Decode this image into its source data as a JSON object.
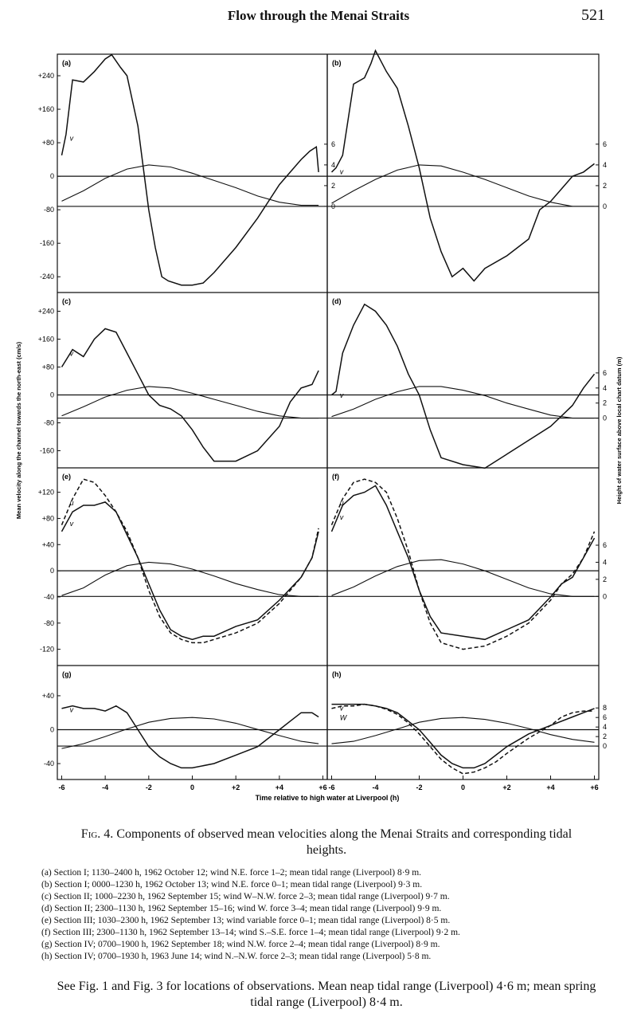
{
  "header": {
    "title": "Flow through the Menai Straits",
    "page_number": "521"
  },
  "y_axis_left_label": "Mean velocity along the channel towards the north-east (cm/s)",
  "y_axis_right_label": "Height of water surface above local chart datum (m)",
  "x_axis_label": "Time relative to high water at Liverpool (h)",
  "caption": {
    "fig_label": "Fig. 4.",
    "text": "Components of observed mean velocities along the Menai Straits and corresponding tidal heights."
  },
  "legend": [
    "(a) Section I; 1130–2400 h, 1962 October 12; wind N.E. force 1–2; mean tidal range (Liverpool) 8·9 m.",
    "(b) Section I; 0000–1230 h, 1962 October 13; wind N.E. force 0–1; mean tidal range (Liverpool) 9·3 m.",
    "(c) Section II; 1000–2230 h, 1962 September 15; wind W–N.W. force 2–3; mean tidal range (Liverpool) 9·7 m.",
    "(d) Section II; 2300–1130 h, 1962 September 15–16; wind W. force 3–4; mean tidal range (Liverpool) 9·9 m.",
    "(e) Section III; 1030–2300 h, 1962 September 13; wind variable force 0–1; mean tidal range (Liverpool) 8·5 m.",
    "(f) Section III; 2300–1130 h, 1962 September 13–14; wind S.–S.E. force 1–4; mean tidal range (Liverpool) 9·2 m.",
    "(g) Section IV; 0700–1900 h, 1962 September 18; wind N.W. force 2–4; mean tidal range (Liverpool) 8·9 m.",
    "(h) Section IV; 0700–1930 h, 1963 June 14; wind N.–N.W. force 2–3; mean tidal range (Liverpool) 5·8 m."
  ],
  "note": "See Fig. 1 and Fig. 3 for locations of observations. Mean neap tidal range (Liverpool) 4·6 m; mean spring tidal range (Liverpool) 8·4 m.",
  "chart_data": [
    {
      "panel": "(a)",
      "type": "line",
      "yticks": [
        "+240",
        "+160",
        "+80",
        "0",
        "-80",
        "-160",
        "-240"
      ],
      "ytick_values": [
        240,
        160,
        80,
        0,
        -80,
        -160,
        -240
      ],
      "ylim": [
        -270,
        280
      ],
      "height_ticks": [
        "6",
        "4",
        "2",
        "0"
      ],
      "height_tick_values": [
        6,
        4,
        2,
        0
      ],
      "curve_labels": [
        "v"
      ],
      "series": [
        {
          "name": "v",
          "style": "solid",
          "x": [
            -6,
            -5.8,
            -5.5,
            -5,
            -4.5,
            -4,
            -3.7,
            -3.3,
            -3,
            -2.5,
            -2,
            -1.7,
            -1.4,
            -1.1,
            -0.5,
            0,
            0.5,
            1,
            1.5,
            2,
            3,
            4,
            5,
            5.4,
            5.7,
            5.8
          ],
          "y": [
            50,
            100,
            230,
            225,
            250,
            280,
            290,
            260,
            240,
            120,
            -80,
            -170,
            -240,
            -250,
            -260,
            -260,
            -255,
            -230,
            -200,
            -170,
            -100,
            -20,
            40,
            60,
            70,
            10
          ]
        },
        {
          "name": "height",
          "style": "solid",
          "x": [
            -6,
            -5,
            -4,
            -3,
            -2,
            -1,
            0,
            1,
            2,
            3,
            4,
            5,
            5.8
          ],
          "y": [
            0.5,
            1.5,
            2.7,
            3.6,
            4.0,
            3.8,
            3.2,
            2.5,
            1.8,
            1.0,
            0.4,
            0.1,
            0.1
          ]
        }
      ]
    },
    {
      "panel": "(b)",
      "type": "line",
      "yticks": [],
      "ytick_values": [],
      "ylim": [
        -270,
        280
      ],
      "height_ticks": [
        "6",
        "4",
        "2",
        "0"
      ],
      "height_tick_values": [
        6,
        4,
        2,
        0
      ],
      "curve_labels": [
        "v"
      ],
      "series": [
        {
          "name": "v",
          "style": "solid",
          "x": [
            -6,
            -5.8,
            -5.5,
            -5,
            -4.5,
            -4.2,
            -4,
            -3.5,
            -3,
            -2.5,
            -2,
            -1.5,
            -1,
            -0.5,
            0,
            0.5,
            1,
            2,
            3,
            3.5,
            4,
            4.5,
            5,
            5.5,
            6
          ],
          "y": [
            10,
            20,
            50,
            220,
            235,
            270,
            300,
            250,
            210,
            120,
            20,
            -100,
            -180,
            -240,
            -220,
            -250,
            -220,
            -190,
            -150,
            -80,
            -60,
            -30,
            0,
            10,
            30
          ]
        },
        {
          "name": "height",
          "style": "solid",
          "x": [
            -6,
            -5,
            -4,
            -3,
            -2,
            -1,
            0,
            1,
            2,
            3,
            4,
            5,
            6
          ],
          "y": [
            0.3,
            1.5,
            2.6,
            3.5,
            4.0,
            3.9,
            3.3,
            2.6,
            1.8,
            1.0,
            0.4,
            0.0,
            0.0
          ]
        }
      ]
    },
    {
      "panel": "(c)",
      "type": "line",
      "yticks": [
        "+240",
        "+160",
        "+80",
        "0",
        "-80",
        "-160"
      ],
      "ytick_values": [
        240,
        160,
        80,
        0,
        -80,
        -160
      ],
      "ylim": [
        -200,
        280
      ],
      "height_ticks": [],
      "height_tick_values": [],
      "curve_labels": [
        "v"
      ],
      "series": [
        {
          "name": "v",
          "style": "solid",
          "x": [
            -6,
            -5.5,
            -5,
            -4.5,
            -4,
            -3.5,
            -3,
            -2.5,
            -2,
            -1.5,
            -1,
            -0.5,
            0,
            0.5,
            1,
            2,
            3,
            4,
            4.5,
            5,
            5.5,
            5.8
          ],
          "y": [
            80,
            130,
            110,
            160,
            190,
            180,
            120,
            60,
            0,
            -30,
            -40,
            -60,
            -100,
            -150,
            -190,
            -190,
            -160,
            -90,
            -20,
            20,
            30,
            70
          ]
        },
        {
          "name": "height",
          "style": "solid",
          "x": [
            -6,
            -5,
            -4,
            -3,
            -2,
            -1,
            0,
            1,
            2,
            3,
            4,
            5,
            5.8
          ],
          "y": [
            0.3,
            1.5,
            2.8,
            3.7,
            4.2,
            4.0,
            3.3,
            2.5,
            1.7,
            0.9,
            0.3,
            0.0,
            0.0
          ]
        }
      ]
    },
    {
      "panel": "(d)",
      "type": "line",
      "yticks": [],
      "ytick_values": [],
      "ylim": [
        -200,
        280
      ],
      "height_ticks": [
        "6",
        "4",
        "2",
        "0"
      ],
      "height_tick_values": [
        6,
        4,
        2,
        0
      ],
      "curve_labels": [
        "v"
      ],
      "series": [
        {
          "name": "v",
          "style": "solid",
          "x": [
            -6,
            -5.8,
            -5.5,
            -5,
            -4.5,
            -4,
            -3.5,
            -3,
            -2.5,
            -2,
            -1.5,
            -1,
            0,
            1,
            2,
            3,
            4,
            4.5,
            5,
            5.5,
            6
          ],
          "y": [
            0,
            10,
            120,
            200,
            260,
            240,
            200,
            140,
            60,
            0,
            -100,
            -180,
            -200,
            -210,
            -170,
            -130,
            -90,
            -60,
            -30,
            20,
            60
          ]
        },
        {
          "name": "height",
          "style": "solid",
          "x": [
            -6,
            -5,
            -4,
            -3,
            -2,
            -1,
            0,
            1,
            2,
            3,
            4,
            5,
            6
          ],
          "y": [
            0.2,
            1.2,
            2.5,
            3.5,
            4.2,
            4.2,
            3.7,
            3.0,
            2.0,
            1.2,
            0.4,
            0.0,
            0.0
          ]
        }
      ]
    },
    {
      "panel": "(e)",
      "type": "line",
      "yticks": [
        "+120",
        "+80",
        "+40",
        "0",
        "-40",
        "-80",
        "-120"
      ],
      "ytick_values": [
        120,
        80,
        40,
        0,
        -40,
        -80,
        -120
      ],
      "ylim": [
        -140,
        150
      ],
      "height_ticks": [],
      "height_tick_values": [],
      "curve_labels": [
        "u",
        "v"
      ],
      "series": [
        {
          "name": "v",
          "style": "solid",
          "x": [
            -6,
            -5.5,
            -5,
            -4.5,
            -4,
            -3.5,
            -3,
            -2.5,
            -2,
            -1.5,
            -1,
            -0.5,
            0,
            0.5,
            1,
            2,
            3,
            4,
            5,
            5.5,
            5.8
          ],
          "y": [
            60,
            90,
            100,
            100,
            105,
            90,
            55,
            20,
            -20,
            -60,
            -90,
            -100,
            -105,
            -100,
            -100,
            -85,
            -75,
            -45,
            -10,
            20,
            60
          ]
        },
        {
          "name": "u",
          "style": "dashed",
          "x": [
            -6,
            -5.5,
            -5,
            -4.5,
            -4,
            -3.5,
            -3,
            -2.5,
            -2,
            -1.5,
            -1,
            -0.5,
            0,
            0.5,
            1,
            2,
            3,
            4,
            5,
            5.5,
            5.8
          ],
          "y": [
            70,
            110,
            140,
            135,
            115,
            90,
            60,
            20,
            -30,
            -70,
            -95,
            -105,
            -110,
            -110,
            -105,
            -95,
            -80,
            -50,
            -10,
            20,
            65
          ]
        },
        {
          "name": "height",
          "style": "solid",
          "x": [
            -6,
            -5,
            -4,
            -3,
            -2,
            -1,
            0,
            1,
            2,
            3,
            4,
            5,
            5.8
          ],
          "y": [
            0.1,
            1.0,
            2.5,
            3.6,
            4.0,
            3.8,
            3.2,
            2.4,
            1.5,
            0.8,
            0.2,
            0.0,
            0.0
          ]
        }
      ]
    },
    {
      "panel": "(f)",
      "type": "line",
      "yticks": [],
      "ytick_values": [],
      "ylim": [
        -140,
        150
      ],
      "height_ticks": [
        "6",
        "4",
        "2",
        "0"
      ],
      "height_tick_values": [
        6,
        4,
        2,
        0
      ],
      "curve_labels": [
        "u",
        "v"
      ],
      "series": [
        {
          "name": "v",
          "style": "solid",
          "x": [
            -6,
            -5.5,
            -5,
            -4.5,
            -4,
            -3.5,
            -3,
            -2.5,
            -2,
            -1.5,
            -1,
            0,
            1,
            2,
            3,
            4,
            4.5,
            5,
            5.5,
            6
          ],
          "y": [
            60,
            100,
            115,
            120,
            130,
            100,
            60,
            20,
            -30,
            -70,
            -95,
            -100,
            -105,
            -90,
            -75,
            -40,
            -20,
            -10,
            20,
            50
          ]
        },
        {
          "name": "u",
          "style": "dashed",
          "x": [
            -6,
            -5.5,
            -5,
            -4.5,
            -4,
            -3.5,
            -3,
            -2.5,
            -2,
            -1.5,
            -1,
            0,
            1,
            2,
            3,
            4,
            4.5,
            5,
            5.5,
            6
          ],
          "y": [
            70,
            110,
            135,
            140,
            135,
            120,
            80,
            30,
            -30,
            -80,
            -110,
            -120,
            -115,
            -100,
            -80,
            -45,
            -20,
            -5,
            20,
            60
          ]
        },
        {
          "name": "height",
          "style": "solid",
          "x": [
            -6,
            -5,
            -4,
            -3,
            -2,
            -1,
            0,
            1,
            2,
            3,
            4,
            5,
            6
          ],
          "y": [
            0.1,
            1.1,
            2.4,
            3.5,
            4.2,
            4.3,
            3.8,
            3.0,
            2.0,
            1.0,
            0.3,
            0.0,
            0.0
          ]
        }
      ]
    },
    {
      "panel": "(g)",
      "type": "line",
      "yticks": [
        "+40",
        "0",
        "-40"
      ],
      "ytick_values": [
        40,
        0,
        -40
      ],
      "ylim": [
        -55,
        70
      ],
      "height_ticks": [],
      "height_tick_values": [],
      "curve_labels": [
        "v"
      ],
      "series": [
        {
          "name": "v",
          "style": "solid",
          "x": [
            -6,
            -5.5,
            -5,
            -4.5,
            -4,
            -3.5,
            -3,
            -2.5,
            -2,
            -1.5,
            -1,
            -0.5,
            0,
            1,
            2,
            3,
            3.5,
            4,
            4.5,
            5,
            5.5,
            5.8
          ],
          "y": [
            25,
            28,
            25,
            25,
            22,
            28,
            20,
            0,
            -20,
            -32,
            -40,
            -45,
            -45,
            -40,
            -30,
            -20,
            -10,
            0,
            10,
            20,
            20,
            15
          ]
        },
        {
          "name": "height",
          "style": "solid",
          "x": [
            -6,
            -5,
            -4,
            -3,
            -2,
            -1,
            0,
            1,
            2,
            3,
            4,
            5,
            5.8
          ],
          "y": [
            -0.5,
            0.5,
            2.0,
            3.6,
            5.0,
            5.8,
            6.0,
            5.7,
            4.8,
            3.5,
            2.2,
            1.0,
            0.5
          ]
        }
      ]
    },
    {
      "panel": "(h)",
      "type": "line",
      "yticks": [],
      "ytick_values": [],
      "ylim": [
        -55,
        70
      ],
      "height_ticks": [
        "8",
        "6",
        "4",
        "2",
        "0"
      ],
      "height_tick_values": [
        8,
        6,
        4,
        2,
        0
      ],
      "curve_labels": [
        "v",
        "W"
      ],
      "series": [
        {
          "name": "v",
          "style": "solid",
          "x": [
            -6,
            -5.5,
            -5,
            -4.5,
            -4,
            -3.5,
            -3,
            -2.5,
            -2,
            -1.5,
            -1,
            -0.5,
            0,
            0.5,
            1,
            1.5,
            2,
            3,
            4,
            5,
            5.5,
            6
          ],
          "y": [
            30,
            30,
            30,
            30,
            28,
            25,
            20,
            10,
            0,
            -15,
            -30,
            -40,
            -45,
            -45,
            -40,
            -30,
            -20,
            -5,
            5,
            15,
            20,
            25
          ]
        },
        {
          "name": "W",
          "style": "dashed",
          "x": [
            -6,
            -5.5,
            -5,
            -4.5,
            -4,
            -3.5,
            -3,
            -2.5,
            -2,
            -1.5,
            -1,
            -0.5,
            0,
            0.5,
            1,
            1.5,
            2,
            3,
            4,
            4.5,
            5,
            5.5,
            6
          ],
          "y": [
            25,
            28,
            28,
            30,
            28,
            24,
            18,
            8,
            -5,
            -20,
            -35,
            -45,
            -52,
            -50,
            -45,
            -38,
            -28,
            -10,
            5,
            15,
            20,
            22,
            22
          ]
        },
        {
          "name": "height",
          "style": "solid",
          "x": [
            -6,
            -5,
            -4,
            -3,
            -2,
            -1,
            0,
            1,
            2,
            3,
            4,
            5,
            6
          ],
          "y": [
            0.5,
            1.0,
            2.2,
            3.6,
            5.0,
            5.8,
            6.0,
            5.6,
            4.8,
            3.7,
            2.4,
            1.4,
            0.8
          ]
        }
      ]
    }
  ]
}
